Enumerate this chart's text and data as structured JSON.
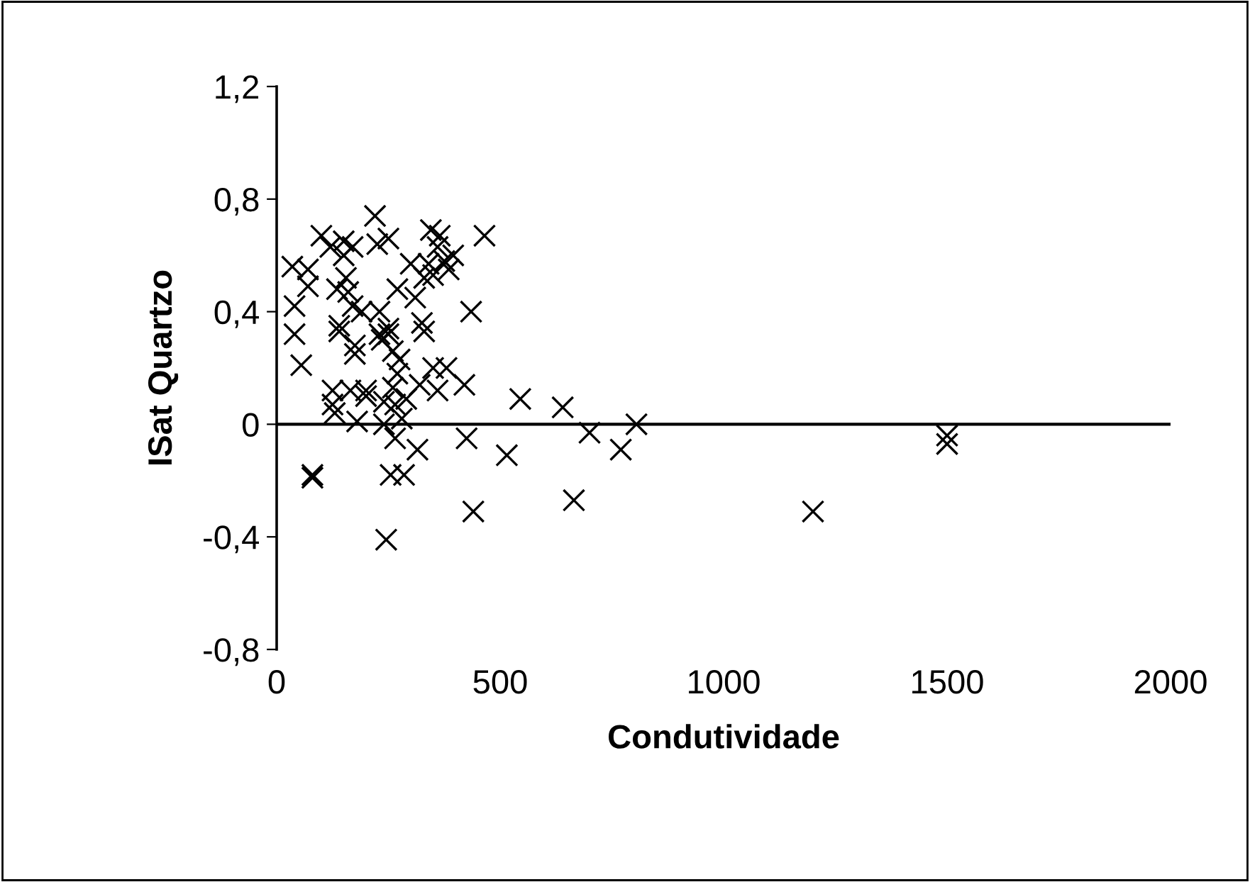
{
  "chart_data": {
    "type": "scatter",
    "xlabel": "Condutividade",
    "ylabel": "ISat Quartzo",
    "marker": "cross",
    "grid": false,
    "legend": false,
    "xlim": [
      0,
      2000
    ],
    "xticks": [
      0,
      500,
      1000,
      1500,
      2000
    ],
    "ylim": [
      -0.8,
      1.2
    ],
    "yticks": [
      {
        "value": -0.8,
        "label": "-0,8"
      },
      {
        "value": -0.4,
        "label": "-0,4"
      },
      {
        "value": 0,
        "label": "0"
      },
      {
        "value": 0.4,
        "label": "0,4"
      },
      {
        "value": 0.8,
        "label": "0,8"
      },
      {
        "value": 1.2,
        "label": "1,2"
      }
    ],
    "ref_lines": [
      {
        "axis": "y",
        "value": 0,
        "color": "#000000"
      }
    ],
    "series": [
      {
        "color": "#000000",
        "x": [
          35,
          40,
          40,
          55,
          70,
          70,
          80,
          80,
          100,
          120,
          125,
          125,
          130,
          135,
          140,
          140,
          150,
          150,
          155,
          160,
          165,
          170,
          170,
          175,
          175,
          180,
          190,
          200,
          200,
          220,
          225,
          230,
          230,
          235,
          240,
          240,
          245,
          250,
          250,
          250,
          255,
          260,
          260,
          265,
          265,
          270,
          270,
          275,
          280,
          285,
          290,
          300,
          310,
          315,
          320,
          325,
          330,
          330,
          340,
          345,
          350,
          350,
          360,
          360,
          365,
          375,
          380,
          385,
          395,
          420,
          425,
          435,
          440,
          465,
          515,
          545,
          640,
          665,
          700,
          770,
          805,
          1200,
          1500,
          1500
        ],
        "values": [
          0.56,
          0.42,
          0.32,
          0.21,
          0.55,
          0.49,
          -0.18,
          -0.19,
          0.67,
          0.63,
          0.12,
          0.07,
          0.04,
          0.48,
          0.33,
          0.35,
          0.65,
          0.6,
          0.52,
          0.47,
          0.12,
          0.63,
          0.42,
          0.28,
          0.25,
          0.01,
          0.4,
          0.1,
          0.12,
          0.74,
          0.64,
          0.4,
          0.32,
          0.3,
          0.08,
          0.0,
          -0.41,
          0.66,
          0.34,
          0.32,
          -0.18,
          0.26,
          0.13,
          0.07,
          -0.05,
          0.48,
          0.18,
          0.23,
          0.02,
          -0.18,
          0.09,
          0.57,
          0.45,
          -0.09,
          0.14,
          0.36,
          0.52,
          0.33,
          0.57,
          0.69,
          0.53,
          0.2,
          0.63,
          0.12,
          0.67,
          0.58,
          0.2,
          0.55,
          0.6,
          0.14,
          -0.05,
          0.4,
          -0.31,
          0.67,
          -0.11,
          0.09,
          0.06,
          -0.27,
          -0.03,
          -0.09,
          0.0,
          -0.31,
          -0.04,
          -0.07
        ]
      }
    ]
  }
}
